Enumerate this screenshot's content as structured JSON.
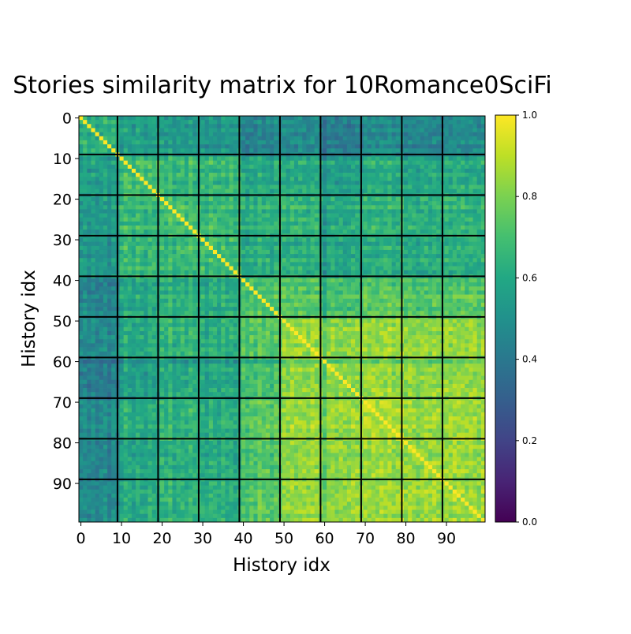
{
  "chart_data": {
    "type": "heatmap",
    "title": "Stories similarity matrix for 10Romance0SciFi",
    "xlabel": "History idx",
    "ylabel": "History idx",
    "size": 100,
    "block_size": 10,
    "xticks": [
      "0",
      "10",
      "20",
      "30",
      "40",
      "50",
      "60",
      "70",
      "80",
      "90"
    ],
    "yticks": [
      "0",
      "10",
      "20",
      "30",
      "40",
      "50",
      "60",
      "70",
      "80",
      "90"
    ],
    "colorbar": {
      "min": 0.0,
      "max": 1.0,
      "ticks": [
        "0.0",
        "0.2",
        "0.4",
        "0.6",
        "0.8",
        "1.0"
      ],
      "colormap": "viridis"
    },
    "diagonal_value": 1.0,
    "block_mean_similarity": [
      [
        0.62,
        0.55,
        0.53,
        0.53,
        0.45,
        0.47,
        0.42,
        0.47,
        0.45,
        0.47
      ],
      [
        0.55,
        0.68,
        0.65,
        0.65,
        0.6,
        0.6,
        0.55,
        0.6,
        0.58,
        0.6
      ],
      [
        0.53,
        0.65,
        0.68,
        0.66,
        0.63,
        0.64,
        0.6,
        0.64,
        0.62,
        0.64
      ],
      [
        0.53,
        0.65,
        0.66,
        0.68,
        0.62,
        0.62,
        0.58,
        0.62,
        0.6,
        0.62
      ],
      [
        0.45,
        0.6,
        0.63,
        0.62,
        0.72,
        0.74,
        0.7,
        0.74,
        0.72,
        0.74
      ],
      [
        0.47,
        0.6,
        0.64,
        0.62,
        0.74,
        0.84,
        0.82,
        0.84,
        0.83,
        0.84
      ],
      [
        0.42,
        0.55,
        0.6,
        0.58,
        0.7,
        0.82,
        0.82,
        0.83,
        0.82,
        0.83
      ],
      [
        0.47,
        0.6,
        0.64,
        0.62,
        0.74,
        0.84,
        0.83,
        0.86,
        0.84,
        0.85
      ],
      [
        0.45,
        0.58,
        0.62,
        0.6,
        0.72,
        0.83,
        0.82,
        0.84,
        0.84,
        0.84
      ],
      [
        0.47,
        0.6,
        0.64,
        0.62,
        0.74,
        0.84,
        0.83,
        0.85,
        0.84,
        0.85
      ]
    ],
    "row_offsets": [
      0.0,
      0.05,
      -0.04,
      0.03,
      -0.03,
      0.0,
      0.04,
      -0.05,
      0.02,
      0.0,
      -0.02,
      0.06,
      0.01,
      -0.03,
      0.04,
      0.0,
      -0.04,
      0.05,
      0.02,
      -0.01,
      0.03,
      -0.02,
      0.06,
      -0.04,
      0.01,
      0.03,
      -0.03,
      0.05,
      0.0,
      -0.02,
      0.02,
      -0.05,
      0.04,
      0.01,
      -0.03,
      0.05,
      -0.01,
      0.03,
      -0.04,
      0.02,
      -0.02,
      -0.06,
      0.0,
      -0.04,
      0.04,
      -0.01,
      0.02,
      -0.05,
      0.03,
      0.0,
      0.01,
      -0.02,
      0.03,
      -0.01,
      0.02,
      0.0,
      -0.03,
      0.02,
      0.01,
      -0.02,
      -0.12,
      0.01,
      0.03,
      -0.02,
      0.02,
      0.0,
      -0.01,
      0.03,
      0.01,
      -0.02,
      0.02,
      0.0,
      0.03,
      -0.01,
      0.02,
      0.01,
      0.04,
      -0.02,
      0.0,
      0.02,
      -0.01,
      0.02,
      0.0,
      -0.03,
      0.01,
      0.02,
      -0.01,
      0.03,
      0.0,
      -0.02,
      0.01,
      -0.01,
      0.02,
      0.0,
      0.03,
      -0.02,
      0.01,
      0.0,
      -0.03,
      0.02
    ]
  }
}
